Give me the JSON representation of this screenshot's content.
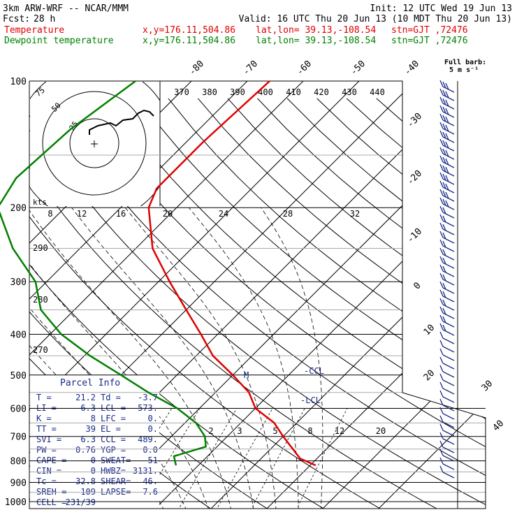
{
  "header": {
    "model": "3km ARW-WRF -- NCAR/MMM",
    "init": "Init: 12 UTC Wed 19 Jun 13",
    "fcst_label": "Fcst:",
    "fcst_value": "28 h",
    "valid": "Valid: 16 UTC Thu 20 Jun 13 (10 MDT Thu 20 Jun 13)",
    "temp_label": "Temperature",
    "dew_label": "Dewpoint temperature",
    "temp_xy": "x,y=176.11,504.86",
    "temp_latlon": "lat,lon= 39.13,-108.54",
    "temp_stn": "stn=GJT ,72476",
    "dew_xy": "x,y=176.11,504.86",
    "dew_latlon": "lat,lon= 39.13,-108.54",
    "dew_stn": "stn=GJT ,72476"
  },
  "barb_legend": {
    "line1": "Full barb:",
    "line2": "5 m s⁻¹"
  },
  "hodograph": {
    "kts_label": "kts",
    "ring_labels": [
      "75",
      "50",
      "25"
    ]
  },
  "parcel_info": {
    "title": "Parcel Info",
    "rows": [
      [
        "T  =",
        "21.2",
        "Td =",
        "-3.7"
      ],
      [
        "LI =",
        "6.3",
        "LCL =",
        "573."
      ],
      [
        "K  =",
        "8",
        "LFC =",
        "0."
      ],
      [
        "TT =",
        "39",
        "EL  =",
        "0."
      ],
      [
        "SVI =",
        "6.3",
        "CCL =",
        "489."
      ],
      [
        "PW =",
        "0.76",
        "YGP =",
        "0.0"
      ],
      [
        "CAPE =",
        "0",
        "SWEAT=",
        "51"
      ],
      [
        "CIN =",
        "0",
        "HWBZ=",
        "3131."
      ],
      [
        "Tc =",
        "32.8",
        "SHEAR=",
        "46."
      ],
      [
        "SREH =",
        "109",
        "LAPSE=",
        "7.6"
      ],
      [
        "CELL =",
        "231/39",
        "",
        ""
      ]
    ]
  },
  "chart_data": {
    "type": "skew-t",
    "pressure_axis_labels": [
      "100",
      "200",
      "300",
      "400",
      "500",
      "600",
      "700",
      "800",
      "900",
      "1000"
    ],
    "isotherm_top_labels": [
      "-80",
      "-70",
      "-60",
      "-50",
      "-40"
    ],
    "isotherm_right_labels": [
      "-30",
      "-20",
      "-10",
      "0",
      "10",
      "20",
      "30",
      "40"
    ],
    "theta_e_labels": [
      "370",
      "380",
      "390",
      "400",
      "410",
      "420",
      "430",
      "440"
    ],
    "mixing_ratio_top_labels": [
      "8",
      "12",
      "16",
      "20",
      "24",
      "28",
      "32"
    ],
    "mixing_ratio_bottom_labels": [
      "2",
      "3",
      "5",
      "8",
      "12",
      "20"
    ],
    "dry_adiabat_labels": [
      "290",
      "280",
      "270"
    ],
    "annotations": [
      "M",
      "CCL",
      "LCL"
    ],
    "series": [
      {
        "name": "Temperature",
        "color": "#e00000",
        "points": [
          [
            100,
            -56
          ],
          [
            140,
            -57
          ],
          [
            180,
            -57
          ],
          [
            200,
            -55
          ],
          [
            250,
            -47
          ],
          [
            300,
            -38
          ],
          [
            350,
            -30
          ],
          [
            400,
            -23
          ],
          [
            450,
            -17
          ],
          [
            500,
            -10
          ],
          [
            550,
            -4
          ],
          [
            600,
            0
          ],
          [
            650,
            6
          ],
          [
            700,
            10
          ],
          [
            750,
            14
          ],
          [
            790,
            17
          ],
          [
            820,
            21
          ]
        ]
      },
      {
        "name": "Dewpoint temperature",
        "color": "#008000",
        "points": [
          [
            100,
            -80
          ],
          [
            130,
            -83
          ],
          [
            170,
            -84
          ],
          [
            200,
            -82
          ],
          [
            250,
            -72
          ],
          [
            300,
            -62
          ],
          [
            350,
            -56
          ],
          [
            400,
            -48
          ],
          [
            450,
            -39
          ],
          [
            500,
            -30
          ],
          [
            550,
            -22
          ],
          [
            600,
            -14
          ],
          [
            650,
            -8
          ],
          [
            700,
            -4
          ],
          [
            740,
            -2
          ],
          [
            780,
            -6
          ],
          [
            820,
            -4
          ]
        ]
      }
    ]
  }
}
